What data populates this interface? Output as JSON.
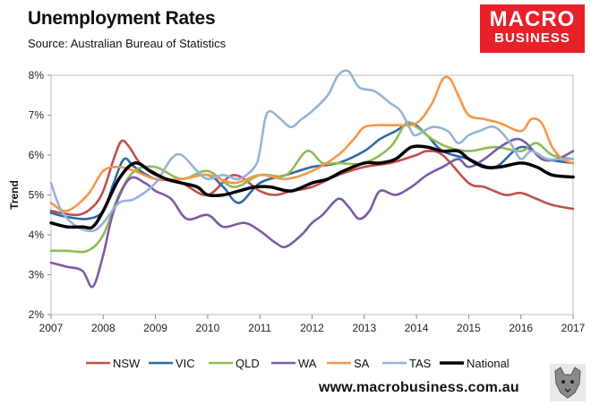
{
  "header": {
    "title": "Unemployment Rates",
    "source": "Source: Australian Bureau of Statistics",
    "logo_line1": "MACRO",
    "logo_line2": "BUSINESS",
    "website": "www.macrobusiness.com.au"
  },
  "colors": {
    "logo_bg": "#e8202a",
    "NSW": "#c0504d",
    "VIC": "#2e6aa6",
    "QLD": "#8fbc55",
    "WA": "#7b5ba5",
    "SA": "#f7964a",
    "TAS": "#95b3d7",
    "National": "#000000"
  },
  "chart_data": {
    "type": "line",
    "title": "Unemployment Rates",
    "ylabel": "Trend",
    "xlabel": "",
    "x_ticks": [
      "2007",
      "2008",
      "2009",
      "2010",
      "2011",
      "2012",
      "2013",
      "2014",
      "2015",
      "2016",
      "2017"
    ],
    "y_ticks": [
      "2%",
      "3%",
      "4%",
      "5%",
      "6%",
      "7%",
      "8%"
    ],
    "xlim": [
      2007,
      2017
    ],
    "ylim": [
      2,
      8
    ],
    "grid": false,
    "legend_position": "bottom",
    "series": [
      {
        "name": "NSW",
        "x": [
          2007.0,
          2007.5,
          2007.8,
          2008.0,
          2008.2,
          2008.35,
          2008.5,
          2008.7,
          2009.0,
          2009.5,
          2010.0,
          2010.5,
          2011.0,
          2011.3,
          2011.6,
          2012.0,
          2012.5,
          2013.0,
          2013.5,
          2014.0,
          2014.2,
          2014.5,
          2015.0,
          2015.3,
          2015.7,
          2016.0,
          2016.3,
          2016.6,
          2017.0
        ],
        "values": [
          4.6,
          4.5,
          4.7,
          5.1,
          5.9,
          6.35,
          6.2,
          5.8,
          5.5,
          5.3,
          5.0,
          5.5,
          5.1,
          5.0,
          5.1,
          5.2,
          5.5,
          5.7,
          5.8,
          6.0,
          6.1,
          6.0,
          5.3,
          5.2,
          5.0,
          5.05,
          4.9,
          4.75,
          4.65
        ]
      },
      {
        "name": "VIC",
        "x": [
          2007.0,
          2007.3,
          2007.7,
          2008.0,
          2008.2,
          2008.4,
          2008.6,
          2009.0,
          2009.5,
          2010.0,
          2010.3,
          2010.6,
          2011.0,
          2011.5,
          2012.0,
          2012.5,
          2013.0,
          2013.3,
          2013.6,
          2013.9,
          2014.2,
          2014.5,
          2015.0,
          2015.5,
          2016.0,
          2016.5,
          2017.0
        ],
        "values": [
          4.55,
          4.45,
          4.4,
          4.6,
          5.3,
          5.9,
          5.7,
          5.4,
          5.4,
          5.5,
          5.2,
          4.8,
          5.3,
          5.5,
          5.7,
          5.8,
          6.1,
          6.4,
          6.6,
          6.8,
          6.5,
          6.1,
          5.9,
          5.7,
          6.2,
          5.9,
          5.8
        ]
      },
      {
        "name": "QLD",
        "x": [
          2007.0,
          2007.3,
          2007.7,
          2008.0,
          2008.3,
          2008.6,
          2009.0,
          2009.5,
          2010.0,
          2010.5,
          2011.0,
          2011.5,
          2011.9,
          2012.2,
          2012.5,
          2013.0,
          2013.5,
          2013.8,
          2014.0,
          2014.3,
          2014.6,
          2015.0,
          2015.5,
          2016.0,
          2016.3,
          2016.6,
          2017.0
        ],
        "values": [
          3.6,
          3.6,
          3.6,
          4.0,
          5.0,
          5.6,
          5.7,
          5.4,
          5.6,
          5.2,
          5.5,
          5.5,
          6.1,
          5.8,
          5.8,
          5.8,
          6.2,
          6.8,
          6.7,
          6.4,
          6.2,
          6.1,
          6.2,
          6.1,
          6.3,
          6.0,
          5.9
        ]
      },
      {
        "name": "WA",
        "x": [
          2007.0,
          2007.3,
          2007.6,
          2007.8,
          2008.0,
          2008.2,
          2008.5,
          2008.8,
          2009.0,
          2009.3,
          2009.6,
          2010.0,
          2010.3,
          2010.7,
          2011.0,
          2011.3,
          2011.5,
          2011.8,
          2012.0,
          2012.2,
          2012.5,
          2012.7,
          2012.9,
          2013.1,
          2013.3,
          2013.6,
          2013.9,
          2014.2,
          2014.5,
          2014.8,
          2015.0,
          2015.3,
          2015.6,
          2015.9,
          2016.1,
          2016.4,
          2016.7,
          2017.0
        ],
        "values": [
          3.3,
          3.2,
          3.1,
          2.7,
          3.5,
          4.6,
          5.4,
          5.3,
          5.1,
          4.9,
          4.4,
          4.5,
          4.2,
          4.3,
          4.1,
          3.8,
          3.7,
          4.0,
          4.3,
          4.5,
          4.9,
          4.7,
          4.4,
          4.6,
          5.1,
          5.0,
          5.2,
          5.5,
          5.7,
          5.9,
          5.7,
          5.9,
          6.2,
          6.4,
          6.3,
          5.9,
          5.9,
          6.1
        ]
      },
      {
        "name": "SA",
        "x": [
          2007.0,
          2007.3,
          2007.7,
          2008.0,
          2008.3,
          2008.6,
          2009.0,
          2009.5,
          2010.0,
          2010.5,
          2011.0,
          2011.5,
          2012.0,
          2012.5,
          2012.8,
          2013.0,
          2013.3,
          2013.6,
          2014.0,
          2014.3,
          2014.5,
          2014.65,
          2014.8,
          2015.0,
          2015.3,
          2015.6,
          2016.0,
          2016.2,
          2016.4,
          2016.6,
          2016.8,
          2017.0
        ],
        "values": [
          4.8,
          4.6,
          5.0,
          5.6,
          5.7,
          5.6,
          5.4,
          5.4,
          5.5,
          5.3,
          5.5,
          5.4,
          5.6,
          6.0,
          6.4,
          6.7,
          6.75,
          6.75,
          6.8,
          7.3,
          7.9,
          7.9,
          7.5,
          7.0,
          6.9,
          6.8,
          6.6,
          6.9,
          6.8,
          6.2,
          5.9,
          5.8
        ]
      },
      {
        "name": "TAS",
        "x": [
          2007.0,
          2007.2,
          2007.5,
          2007.8,
          2008.0,
          2008.3,
          2008.6,
          2009.0,
          2009.3,
          2009.5,
          2009.8,
          2010.0,
          2010.3,
          2010.6,
          2010.9,
          2011.0,
          2011.1,
          2011.2,
          2011.4,
          2011.6,
          2011.8,
          2012.0,
          2012.3,
          2012.5,
          2012.7,
          2012.9,
          2013.2,
          2013.5,
          2013.7,
          2013.9,
          2014.0,
          2014.3,
          2014.6,
          2014.8,
          2015.0,
          2015.2,
          2015.5,
          2015.8,
          2016.0,
          2016.2,
          2016.5,
          2016.8,
          2017.0
        ],
        "values": [
          5.3,
          4.6,
          4.2,
          4.1,
          4.3,
          4.8,
          4.9,
          5.3,
          5.9,
          6.0,
          5.6,
          5.4,
          5.5,
          5.4,
          5.7,
          6.1,
          6.9,
          7.1,
          6.9,
          6.7,
          6.9,
          7.1,
          7.5,
          8.0,
          8.1,
          7.7,
          7.6,
          7.3,
          7.1,
          6.6,
          6.5,
          6.7,
          6.6,
          6.3,
          6.5,
          6.6,
          6.7,
          6.3,
          5.9,
          6.1,
          5.9,
          5.9,
          5.9
        ]
      },
      {
        "name": "National",
        "x": [
          2007.0,
          2007.3,
          2007.6,
          2007.8,
          2008.0,
          2008.3,
          2008.6,
          2008.9,
          2009.2,
          2009.5,
          2009.8,
          2010.0,
          2010.3,
          2010.6,
          2010.9,
          2011.2,
          2011.6,
          2012.0,
          2012.3,
          2012.6,
          2013.0,
          2013.3,
          2013.6,
          2013.9,
          2014.2,
          2014.5,
          2014.8,
          2015.0,
          2015.3,
          2015.6,
          2016.0,
          2016.3,
          2016.6,
          2017.0
        ],
        "values": [
          4.3,
          4.2,
          4.2,
          4.2,
          4.6,
          5.4,
          5.8,
          5.6,
          5.4,
          5.3,
          5.2,
          5.0,
          5.0,
          5.1,
          5.2,
          5.2,
          5.1,
          5.3,
          5.4,
          5.6,
          5.8,
          5.8,
          5.9,
          6.2,
          6.2,
          6.1,
          6.1,
          5.9,
          5.7,
          5.7,
          5.8,
          5.7,
          5.5,
          5.45
        ]
      }
    ]
  }
}
